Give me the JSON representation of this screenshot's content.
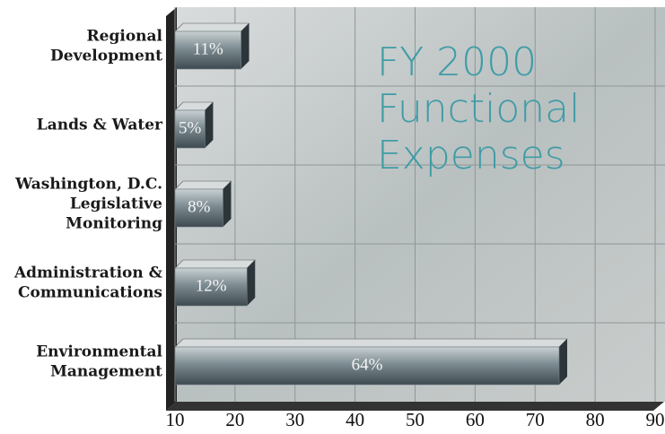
{
  "chart_data": {
    "type": "bar",
    "orientation": "horizontal",
    "title": [
      "FY 2000",
      "Functional",
      "Expenses"
    ],
    "categories": [
      [
        "Regional",
        "Development"
      ],
      [
        "Lands & Water"
      ],
      [
        "Washington, D.C.",
        "Legislative",
        "Monitoring"
      ],
      [
        "Administration &",
        "Communications"
      ],
      [
        "Environmental",
        "Management"
      ]
    ],
    "values": [
      11,
      5,
      8,
      12,
      64
    ],
    "value_labels": [
      "11%",
      "5%",
      "8%",
      "12%",
      "64%"
    ],
    "color": "#6f7f86",
    "xlim": [
      10,
      90
    ],
    "xticks": [
      10,
      20,
      30,
      40,
      50,
      60,
      70,
      80,
      90
    ],
    "grid": true
  }
}
